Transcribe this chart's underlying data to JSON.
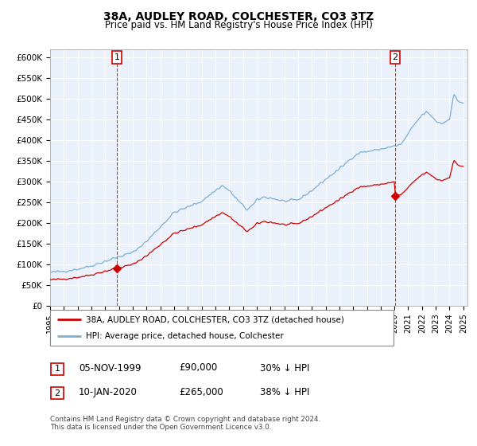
{
  "title": "38A, AUDLEY ROAD, COLCHESTER, CO3 3TZ",
  "subtitle": "Price paid vs. HM Land Registry's House Price Index (HPI)",
  "title_fontsize": 10,
  "subtitle_fontsize": 8.5,
  "hpi_color": "#7BAFD4",
  "price_color": "#CC0000",
  "marker1_year": 1999.84,
  "marker1_price": 90000,
  "marker2_year": 2020.04,
  "marker2_price": 265000,
  "legend_label1": "38A, AUDLEY ROAD, COLCHESTER, CO3 3TZ (detached house)",
  "legend_label2": "HPI: Average price, detached house, Colchester",
  "table_row1": [
    "1",
    "05-NOV-1999",
    "£90,000",
    "30% ↓ HPI"
  ],
  "table_row2": [
    "2",
    "10-JAN-2020",
    "£265,000",
    "38% ↓ HPI"
  ],
  "footer": "Contains HM Land Registry data © Crown copyright and database right 2024.\nThis data is licensed under the Open Government Licence v3.0.",
  "background_color": "#FFFFFF",
  "chart_bg_color": "#EAF1FB",
  "grid_color": "#FFFFFF"
}
